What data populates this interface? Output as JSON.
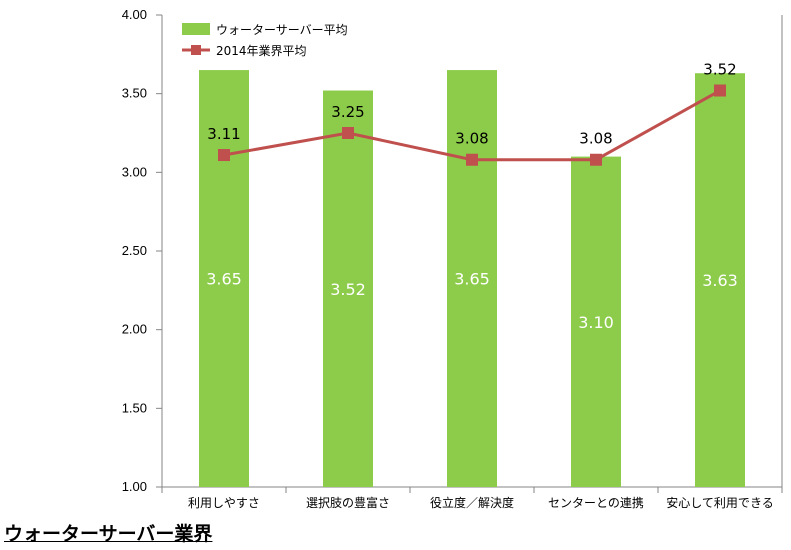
{
  "chart_data": {
    "type": "bar",
    "categories": [
      "利用しやすさ",
      "選択肢の豊富さ",
      "役立度／解決度",
      "センターとの連携",
      "安心して利用できる"
    ],
    "series": [
      {
        "name": "ウォーターサーバー平均",
        "type": "bar",
        "color": "#8CCC4A",
        "values": [
          3.65,
          3.52,
          3.65,
          3.1,
          3.63
        ],
        "labels": [
          "3.65",
          "3.52",
          "3.65",
          "3.10",
          "3.63"
        ]
      },
      {
        "name": "2014年業界平均",
        "type": "line",
        "color": "#C0504D",
        "values": [
          3.11,
          3.25,
          3.08,
          3.08,
          3.52
        ],
        "labels": [
          "3.11",
          "3.25",
          "3.08",
          "3.08",
          "3.52"
        ]
      }
    ],
    "ylim": [
      1.0,
      4.0
    ],
    "yticks": [
      "1.00",
      "1.50",
      "2.00",
      "2.50",
      "3.00",
      "3.50",
      "4.00"
    ],
    "grid": false,
    "legend_position": "top-left"
  },
  "footer": {
    "title": "ウォーターサーバー業界"
  }
}
